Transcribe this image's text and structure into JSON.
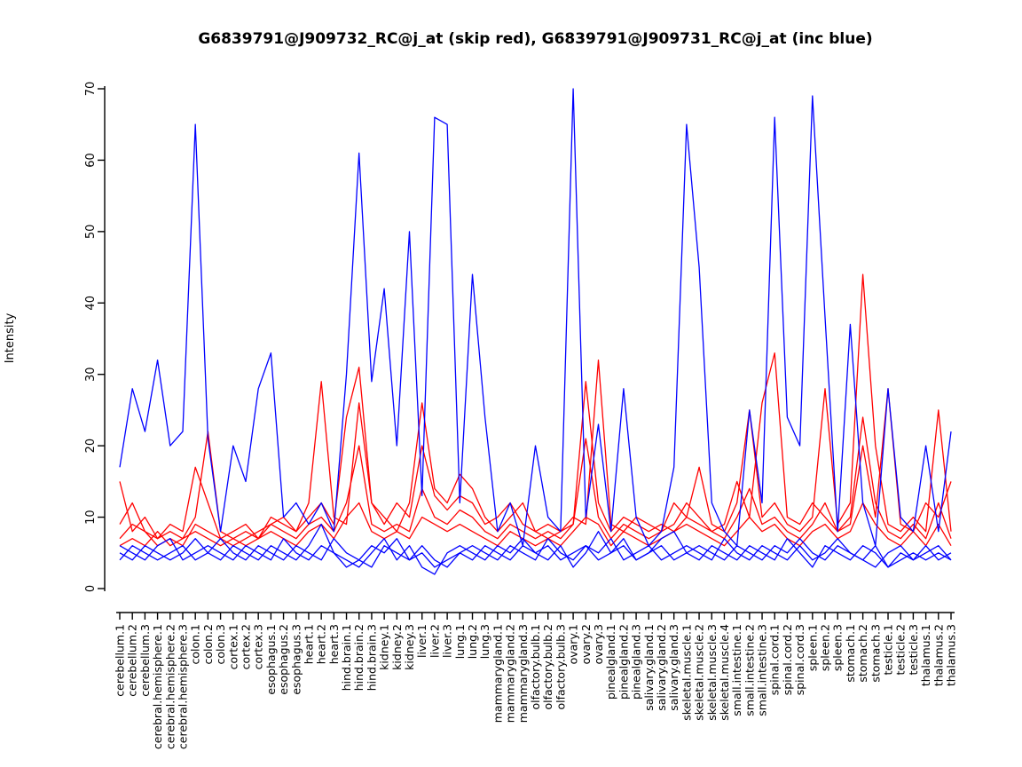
{
  "chart_data": {
    "type": "line",
    "title": "G6839791@J909732_RC@j_at (skip red), G6839791@J909731_RC@j_at (inc blue)",
    "xlabel": "",
    "ylabel": "Intensity",
    "ylim": [
      0,
      70
    ],
    "yticks": [
      0,
      10,
      20,
      30,
      40,
      50,
      60,
      70
    ],
    "grid": false,
    "legend_position": "none",
    "colors": {
      "skip": "#FF0000",
      "inc": "#0000FF"
    },
    "categories": [
      "cerebellum.1",
      "cerebellum.2",
      "cerebellum.3",
      "cerebral.hemisphere.1",
      "cerebral.hemisphere.2",
      "cerebral.hemisphere.3",
      "colon.1",
      "colon.2",
      "colon.3",
      "cortex.1",
      "cortex.2",
      "cortex.3",
      "esophagus.1",
      "esophagus.2",
      "esophagus.3",
      "heart.1",
      "heart.2",
      "heart.3",
      "hind.brain.1",
      "hind.brain.2",
      "hind.brain.3",
      "kidney.1",
      "kidney.2",
      "kidney.3",
      "liver.1",
      "liver.2",
      "liver.3",
      "lung.1",
      "lung.2",
      "lung.3",
      "mammarygland.1",
      "mammarygland.2",
      "mammarygland.3",
      "olfactory.bulb.1",
      "olfactory.bulb.2",
      "olfactory.bulb.3",
      "ovary.1",
      "ovary.2",
      "ovary.3",
      "pinealgland.1",
      "pinealgland.2",
      "pinealgland.3",
      "salivary.gland.1",
      "salivary.gland.2",
      "salivary.gland.3",
      "skeletal.muscle.1",
      "skeletal.muscle.2",
      "skeletal.muscle.3",
      "skeletal.muscle.4",
      "small.intestine.1",
      "small.intestine.2",
      "small.intestine.3",
      "spinal.cord.1",
      "spinal.cord.2",
      "spinal.cord.3",
      "spleen.1",
      "spleen.2",
      "spleen.3",
      "stomach.1",
      "stomach.2",
      "stomach.3",
      "testicle.1",
      "testicle.2",
      "testicle.3",
      "thalamus.1",
      "thalamus.2",
      "thalamus.3"
    ],
    "series": [
      {
        "name": "skip-probe-1",
        "group": "G6839791@J909732_RC@j_at (skip)",
        "color": "#FF0000",
        "values": [
          9,
          12,
          8,
          7,
          8,
          7,
          10,
          22,
          8,
          7,
          8,
          7,
          9,
          10,
          8,
          12,
          29,
          10,
          9,
          26,
          12,
          10,
          8,
          12,
          26,
          14,
          12,
          16,
          14,
          10,
          8,
          10,
          12,
          8,
          7,
          8,
          9,
          29,
          12,
          8,
          10,
          9,
          8,
          9,
          8,
          10,
          17,
          9,
          8,
          12,
          25,
          10,
          12,
          9,
          8,
          10,
          28,
          9,
          12,
          44,
          20,
          9,
          8,
          10,
          8,
          25,
          8
        ]
      },
      {
        "name": "skip-probe-2",
        "group": "G6839791@J909732_RC@j_at (skip)",
        "color": "#FF0000",
        "values": [
          15,
          8,
          10,
          7,
          9,
          8,
          17,
          12,
          7,
          8,
          9,
          7,
          10,
          9,
          8,
          10,
          12,
          9,
          24,
          31,
          12,
          9,
          12,
          10,
          20,
          13,
          11,
          13,
          12,
          9,
          10,
          12,
          9,
          8,
          9,
          8,
          10,
          9,
          32,
          9,
          8,
          10,
          9,
          8,
          12,
          10,
          9,
          8,
          9,
          15,
          10,
          26,
          33,
          10,
          9,
          12,
          10,
          8,
          9,
          20,
          10,
          28,
          9,
          8,
          12,
          10,
          15
        ]
      },
      {
        "name": "skip-probe-3",
        "group": "G6839791@J909732_RC@j_at (skip)",
        "color": "#FF0000",
        "values": [
          7,
          9,
          8,
          6,
          7,
          6,
          9,
          8,
          7,
          6,
          7,
          8,
          9,
          8,
          7,
          9,
          10,
          8,
          12,
          20,
          9,
          8,
          9,
          8,
          14,
          10,
          9,
          11,
          10,
          8,
          7,
          9,
          8,
          7,
          8,
          7,
          9,
          21,
          10,
          7,
          9,
          8,
          7,
          8,
          9,
          12,
          10,
          8,
          7,
          10,
          14,
          9,
          10,
          8,
          7,
          9,
          12,
          8,
          10,
          24,
          12,
          8,
          7,
          9,
          7,
          12,
          7
        ]
      },
      {
        "name": "skip-probe-4",
        "group": "G6839791@J909732_RC@j_at (skip)",
        "color": "#FF0000",
        "values": [
          6,
          7,
          6,
          8,
          6,
          7,
          8,
          7,
          6,
          7,
          6,
          7,
          8,
          7,
          6,
          8,
          9,
          7,
          10,
          12,
          8,
          7,
          8,
          7,
          10,
          9,
          8,
          9,
          8,
          7,
          6,
          8,
          7,
          6,
          7,
          6,
          8,
          10,
          9,
          6,
          8,
          7,
          6,
          7,
          8,
          9,
          8,
          7,
          6,
          8,
          10,
          8,
          9,
          7,
          6,
          8,
          9,
          7,
          8,
          12,
          9,
          7,
          6,
          8,
          6,
          9,
          6
        ]
      },
      {
        "name": "inc-probe-1",
        "group": "G6839791@J909731_RC@j_at (inc)",
        "color": "#0000FF",
        "values": [
          17,
          28,
          22,
          32,
          20,
          22,
          65,
          21,
          8,
          20,
          15,
          28,
          33,
          10,
          12,
          9,
          12,
          8,
          30,
          61,
          29,
          42,
          20,
          50,
          13,
          66,
          65,
          12,
          44,
          24,
          8,
          12,
          6,
          20,
          10,
          8,
          70,
          10,
          23,
          8,
          28,
          10,
          6,
          8,
          17,
          65,
          45,
          12,
          8,
          6,
          25,
          12,
          66,
          24,
          20,
          69,
          38,
          8,
          37,
          12,
          6,
          28,
          10,
          8,
          20,
          8,
          22
        ]
      },
      {
        "name": "inc-probe-2",
        "group": "G6839791@J909731_RC@j_at (inc)",
        "color": "#0000FF",
        "values": [
          5,
          4,
          6,
          5,
          4,
          5,
          7,
          5,
          4,
          6,
          5,
          4,
          6,
          5,
          4,
          6,
          9,
          5,
          4,
          3,
          5,
          7,
          4,
          6,
          3,
          2,
          5,
          6,
          5,
          4,
          6,
          5,
          7,
          5,
          4,
          6,
          3,
          5,
          8,
          5,
          6,
          4,
          5,
          7,
          8,
          5,
          4,
          6,
          5,
          4,
          6,
          5,
          4,
          7,
          5,
          3,
          6,
          5,
          4,
          6,
          5,
          3,
          4,
          5,
          4,
          5,
          4
        ]
      },
      {
        "name": "inc-probe-3",
        "group": "G6839791@J909731_RC@j_at (inc)",
        "color": "#0000FF",
        "values": [
          6,
          5,
          4,
          6,
          7,
          4,
          5,
          6,
          5,
          4,
          6,
          5,
          4,
          7,
          5,
          4,
          6,
          5,
          3,
          4,
          6,
          5,
          7,
          4,
          5,
          3,
          4,
          5,
          6,
          5,
          4,
          6,
          5,
          4,
          7,
          5,
          4,
          6,
          5,
          7,
          4,
          5,
          6,
          4,
          5,
          6,
          5,
          4,
          7,
          5,
          4,
          6,
          5,
          4,
          6,
          4,
          5,
          7,
          5,
          4,
          6,
          3,
          5,
          4,
          6,
          4,
          5
        ]
      },
      {
        "name": "inc-probe-4",
        "group": "G6839791@J909731_RC@j_at (inc)",
        "color": "#0000FF",
        "values": [
          4,
          6,
          5,
          4,
          5,
          6,
          4,
          5,
          7,
          5,
          4,
          6,
          5,
          4,
          6,
          5,
          4,
          7,
          5,
          4,
          3,
          6,
          5,
          4,
          6,
          4,
          3,
          5,
          4,
          6,
          5,
          4,
          6,
          5,
          6,
          4,
          5,
          6,
          4,
          5,
          7,
          4,
          5,
          6,
          4,
          5,
          6,
          5,
          4,
          6,
          5,
          4,
          6,
          5,
          7,
          5,
          4,
          6,
          5,
          4,
          3,
          5,
          6,
          4,
          5,
          6,
          4
        ]
      }
    ]
  }
}
